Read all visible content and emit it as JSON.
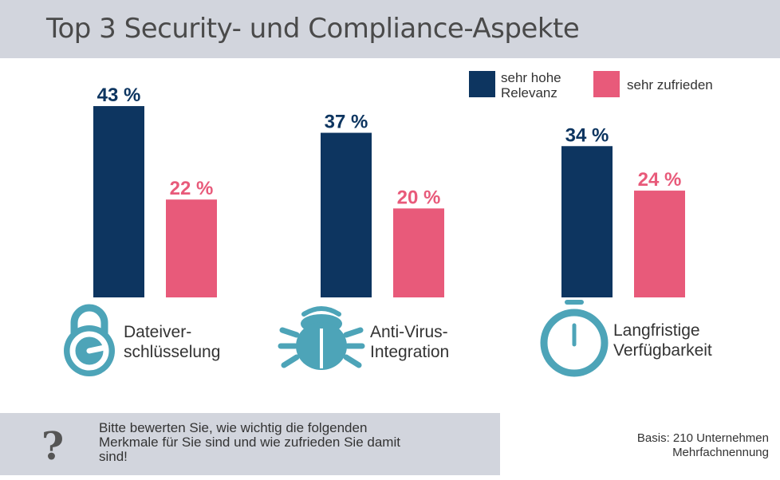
{
  "title": "Top 3 Security- und Compliance-Aspekte",
  "legend": [
    {
      "label_line1": "sehr hohe",
      "label_line2": "Relevanz",
      "color": "#0d3560"
    },
    {
      "label_line1": "sehr zufrieden",
      "label_line2": "",
      "color": "#e85a7a"
    }
  ],
  "chart_data": {
    "type": "bar",
    "categories": [
      "Dateiverschlüsselung",
      "Anti-Virus-Integration",
      "Langfristige Verfügbarkeit"
    ],
    "series": [
      {
        "name": "sehr hohe Relevanz",
        "values": [
          43,
          37,
          34
        ],
        "color": "#0d3560"
      },
      {
        "name": "sehr zufrieden",
        "values": [
          22,
          20,
          24
        ],
        "color": "#e85a7a"
      }
    ],
    "value_labels": [
      [
        "43 %",
        "37 %",
        "34 %"
      ],
      [
        "22 %",
        "20 %",
        "24 %"
      ]
    ],
    "unit": "%"
  },
  "categories_display": [
    {
      "line1": "Dateiver-",
      "line2": "schlüsselung",
      "icon": "lock-icon"
    },
    {
      "line1": "Anti-Virus-",
      "line2": "Integration",
      "icon": "bug-icon"
    },
    {
      "line1": "Langfristige",
      "line2": "Verfügbarkeit",
      "icon": "stopwatch-icon"
    }
  ],
  "icon_color": "#4da4b8",
  "footer": {
    "qmark": "?",
    "question_line1": "Bitte bewerten Sie, wie wichtig die folgenden",
    "question_line2": "Merkmale für Sie sind und wie zufrieden Sie damit",
    "question_line3": "sind!",
    "basis_line1": "Basis: 210 Unternehmen",
    "basis_line2": "Mehrfachnennung"
  }
}
